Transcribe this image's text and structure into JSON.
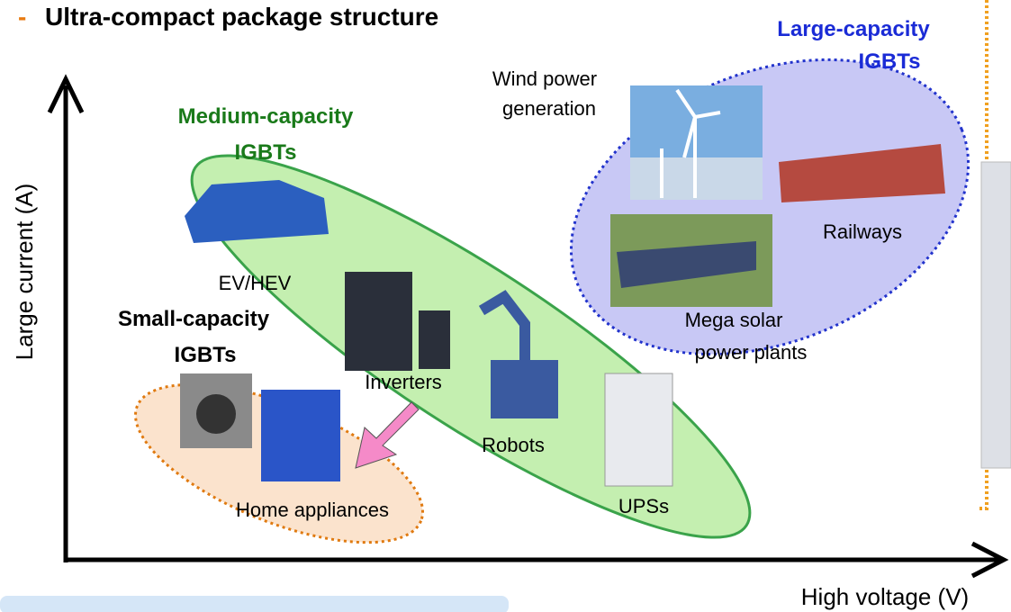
{
  "header": {
    "bullet": "-",
    "title": "Ultra-compact package structure"
  },
  "axes": {
    "y_label": "Large current (A)",
    "x_label": "High voltage (V)"
  },
  "groups": [
    {
      "lines": [
        "Large-capacity",
        "IGBTs"
      ]
    },
    {
      "lines": [
        "Medium-capacity",
        "IGBTs"
      ]
    },
    {
      "lines": [
        "Small-capacity",
        "IGBTs"
      ]
    }
  ],
  "applications": [
    {
      "lines": [
        "Wind power",
        "generation"
      ]
    },
    {
      "lines": [
        "Railways"
      ]
    },
    {
      "lines": [
        "Mega solar",
        "power plants"
      ]
    },
    {
      "lines": [
        "EV/HEV"
      ]
    },
    {
      "lines": [
        "Inverters"
      ]
    },
    {
      "lines": [
        "Robots"
      ]
    },
    {
      "lines": [
        "UPSs"
      ]
    },
    {
      "lines": [
        "Home appliances"
      ]
    }
  ]
}
